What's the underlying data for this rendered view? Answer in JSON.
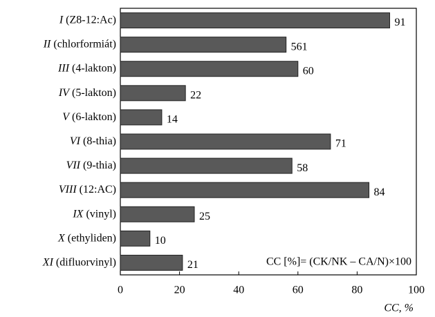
{
  "chart_data": {
    "type": "bar",
    "orientation": "horizontal",
    "categories": [
      "I (Z8-12:Ac)",
      "II (chlorformiát)",
      "III (4-lakton)",
      "IV (5-lakton)",
      "V (6-lakton)",
      "VI (8-thia)",
      "VII (9-thia)",
      "VIII (12:AC)",
      "IX (vinyl)",
      "X (ethyliden)",
      "XI (difluorvinyl)"
    ],
    "values": [
      91,
      56,
      60,
      22,
      14,
      71,
      58,
      84,
      25,
      10,
      21
    ],
    "superscripts": [
      null,
      "1",
      null,
      null,
      null,
      null,
      null,
      null,
      null,
      null,
      null
    ],
    "color": "#595959",
    "xlim": [
      0,
      100
    ],
    "xticks": [
      0,
      20,
      40,
      60,
      80,
      100
    ],
    "xlabel": "CC, %",
    "annotation": "CC [%]= (CK/NK – CA/N)×100"
  }
}
